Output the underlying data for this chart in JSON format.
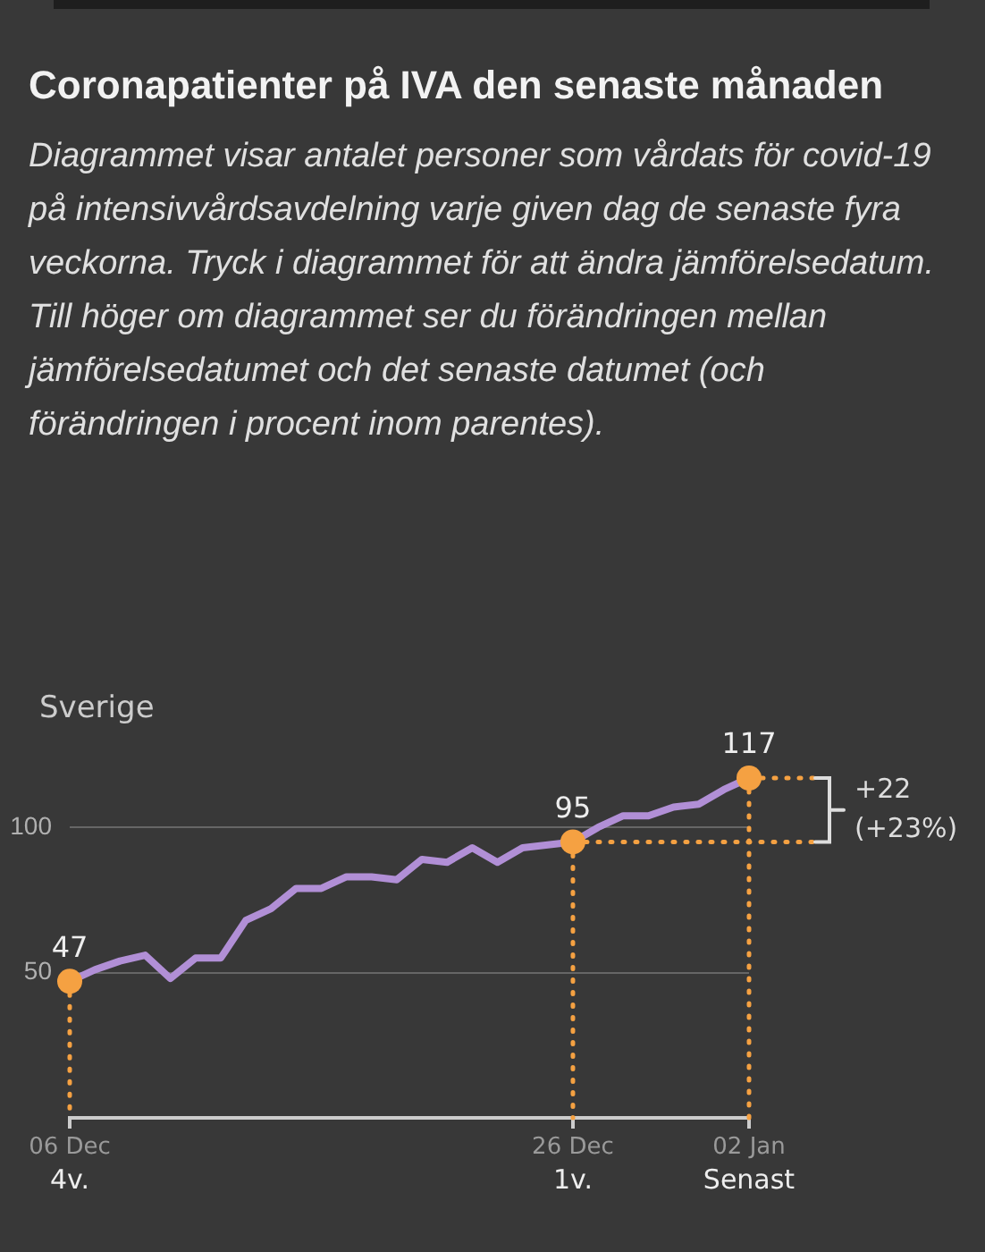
{
  "chart_data": {
    "type": "line",
    "title": "Coronapatienter på IVA den senaste månaden",
    "subtitle": "Diagrammet visar antalet personer som vårdats för covid-19 på intensivvårdsavdelning varje given dag de senaste fyra veckorna. Tryck i diagrammet för att ändra jämförelsedatum. Till höger om diagrammet ser du förändringen mellan jämförelsedatumet och det senaste datumet (och förändringen i procent inom parentes).",
    "ylabel": "Sverige",
    "categories": [
      "06 Dec\n4v.",
      null,
      null,
      null,
      null,
      null,
      null,
      null,
      null,
      null,
      null,
      null,
      null,
      null,
      null,
      null,
      null,
      null,
      null,
      null,
      "26 Dec\n1v.",
      null,
      null,
      null,
      null,
      null,
      null,
      "02 Jan\nSenast"
    ],
    "series": [
      {
        "color": "#b18fd6",
        "values": [
          47,
          51,
          54,
          56,
          48,
          55,
          55,
          68,
          72,
          79,
          79,
          83,
          83,
          82,
          89,
          88,
          93,
          88,
          93,
          94,
          95,
          100,
          104,
          104,
          107,
          108,
          113,
          117
        ]
      },
      {
        "type": "scatter",
        "color": "#f5a142",
        "x": [
          "06 Dec\n4v.",
          "26 Dec\n1v.",
          "02 Jan\nSenast"
        ],
        "values": [
          47,
          95,
          117
        ],
        "value_labels": [
          "47",
          "95",
          "117"
        ]
      }
    ],
    "annotations": [
      "+22\n(+23%)"
    ],
    "ylim": [
      0,
      117
    ],
    "yticks": [
      50,
      100
    ],
    "grid": "y",
    "legend": false,
    "line_style": "solid"
  }
}
